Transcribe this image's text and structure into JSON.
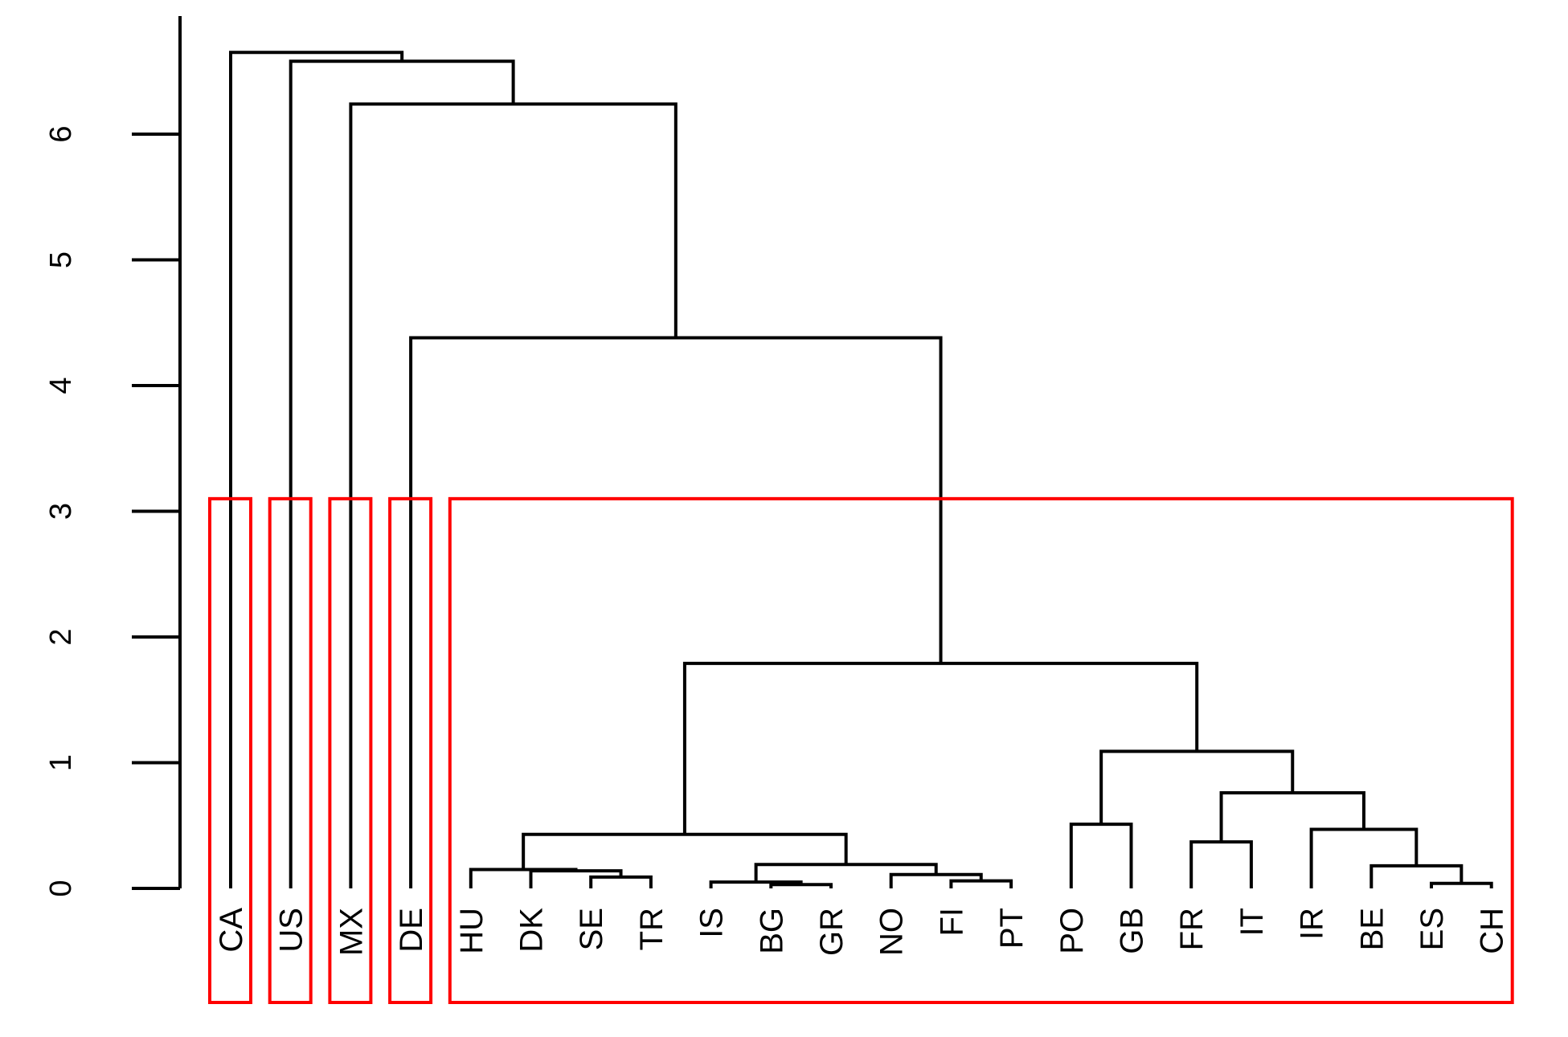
{
  "chart_data": {
    "type": "dendrogram",
    "title": "",
    "xlabel": "",
    "ylabel": "",
    "ylim": [
      0,
      6.9
    ],
    "yticks": [
      0,
      1,
      2,
      3,
      4,
      5,
      6
    ],
    "leaves": [
      "CA",
      "US",
      "MX",
      "DE",
      "HU",
      "DK",
      "SE",
      "TR",
      "IS",
      "BG",
      "GR",
      "NO",
      "FI",
      "PT",
      "PO",
      "GB",
      "FR",
      "IT",
      "IR",
      "BE",
      "ES",
      "CH"
    ],
    "merges": [
      {
        "id": "m1",
        "left": "BG",
        "right": "GR",
        "height": 0.03
      },
      {
        "id": "m2",
        "left": "ES",
        "right": "CH",
        "height": 0.04
      },
      {
        "id": "m3",
        "left": "FI",
        "right": "PT",
        "height": 0.06
      },
      {
        "id": "m4",
        "left": "IS",
        "right": "m1",
        "height": 0.05
      },
      {
        "id": "m5",
        "left": "SE",
        "right": "TR",
        "height": 0.09
      },
      {
        "id": "m6",
        "left": "NO",
        "right": "m3",
        "height": 0.11
      },
      {
        "id": "m7",
        "left": "DK",
        "right": "m5",
        "height": 0.14
      },
      {
        "id": "m8",
        "left": "BE",
        "right": "m2",
        "height": 0.18
      },
      {
        "id": "m9",
        "left": "m4",
        "right": "m6",
        "height": 0.19
      },
      {
        "id": "m10",
        "left": "FR",
        "right": "IT",
        "height": 0.37
      },
      {
        "id": "m11",
        "left": "HU",
        "right": "m7",
        "height": 0.15
      },
      {
        "id": "m12",
        "left": "m11",
        "right": "m9",
        "height": 0.43
      },
      {
        "id": "m13",
        "left": "IR",
        "right": "m8",
        "height": 0.47
      },
      {
        "id": "m14",
        "left": "PO",
        "right": "GB",
        "height": 0.51
      },
      {
        "id": "m15",
        "left": "m10",
        "right": "m13",
        "height": 0.76
      },
      {
        "id": "m16",
        "left": "m14",
        "right": "m15",
        "height": 1.09
      },
      {
        "id": "m17",
        "left": "m12",
        "right": "m16",
        "height": 1.79
      },
      {
        "id": "m18",
        "left": "DE",
        "right": "m17",
        "height": 4.38
      },
      {
        "id": "m19",
        "left": "MX",
        "right": "m18",
        "height": 6.24
      },
      {
        "id": "m20",
        "left": "US",
        "right": "m19",
        "height": 6.58
      },
      {
        "id": "m21",
        "left": "CA",
        "right": "m20",
        "height": 6.65
      }
    ],
    "cut_height": 3.1,
    "clusters": [
      [
        "CA"
      ],
      [
        "US"
      ],
      [
        "MX"
      ],
      [
        "DE"
      ],
      [
        "HU",
        "DK",
        "SE",
        "TR",
        "IS",
        "BG",
        "GR",
        "NO",
        "FI",
        "PT",
        "PO",
        "GB",
        "FR",
        "IT",
        "IR",
        "BE",
        "ES",
        "CH"
      ]
    ],
    "colors": {
      "tree": "#000000",
      "cluster_box": "#ff0000"
    }
  }
}
